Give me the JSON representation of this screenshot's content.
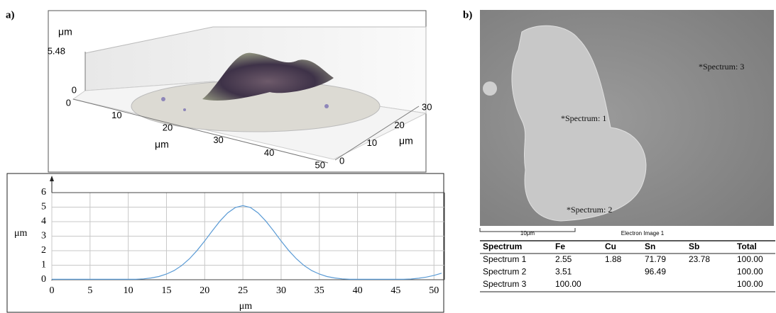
{
  "panel_labels": [
    "a)",
    "b)"
  ],
  "surface_3d": {
    "z_label": "μm",
    "zticks": [
      0,
      5.48
    ],
    "x_label": "μm",
    "xticks": [
      0,
      10,
      20,
      30,
      40,
      50
    ],
    "y_label": "μm",
    "yticks": [
      0,
      10,
      20,
      30
    ]
  },
  "chart_data": {
    "type": "line",
    "x_label": "μm",
    "y_label": "μm",
    "x": [
      0,
      1,
      2,
      3,
      4,
      5,
      6,
      7,
      8,
      9,
      10,
      11,
      12,
      13,
      14,
      15,
      16,
      17,
      18,
      19,
      20,
      21,
      22,
      23,
      24,
      25,
      26,
      27,
      28,
      29,
      30,
      31,
      32,
      33,
      34,
      35,
      36,
      37,
      38,
      39,
      40,
      41,
      42,
      43,
      44,
      45,
      46,
      47,
      48,
      49,
      50,
      51
    ],
    "values": [
      0.03,
      0.03,
      0.03,
      0.03,
      0.03,
      0.03,
      0.03,
      0.03,
      0.03,
      0.03,
      0.03,
      0.03,
      0.06,
      0.12,
      0.22,
      0.39,
      0.63,
      0.98,
      1.44,
      2.01,
      2.67,
      3.37,
      4.04,
      4.6,
      4.97,
      5.1,
      4.97,
      4.6,
      4.04,
      3.37,
      2.67,
      2.01,
      1.44,
      0.98,
      0.63,
      0.39,
      0.22,
      0.12,
      0.06,
      0.03,
      0.03,
      0.03,
      0.03,
      0.03,
      0.03,
      0.03,
      0.03,
      0.05,
      0.1,
      0.18,
      0.3,
      0.45
    ],
    "color": "#5b9bd5",
    "xlim": [
      0,
      51
    ],
    "ylim": [
      0,
      6
    ],
    "xticks": [
      0,
      5,
      10,
      15,
      20,
      25,
      30,
      35,
      40,
      45,
      50
    ],
    "yticks": [
      0,
      1,
      2,
      3,
      4,
      5,
      6
    ],
    "grid": true
  },
  "sem_image": {
    "labels": [
      "*Spectrum: 1",
      "*Spectrum: 2",
      "*Spectrum: 3"
    ],
    "scale_bar": "10μm",
    "caption": "Electron Image 1"
  },
  "table": {
    "header": [
      "Spectrum",
      "Fe",
      "Cu",
      "Sn",
      "Sb",
      "Total"
    ],
    "rows": [
      [
        "Spectrum 1",
        "2.55",
        "1.88",
        "71.79",
        "23.78",
        "100.00"
      ],
      [
        "Spectrum 2",
        "3.51",
        null,
        "96.49",
        null,
        "100.00"
      ],
      [
        "Spectrum 3",
        "100.00",
        null,
        null,
        null,
        "100.00"
      ]
    ]
  }
}
